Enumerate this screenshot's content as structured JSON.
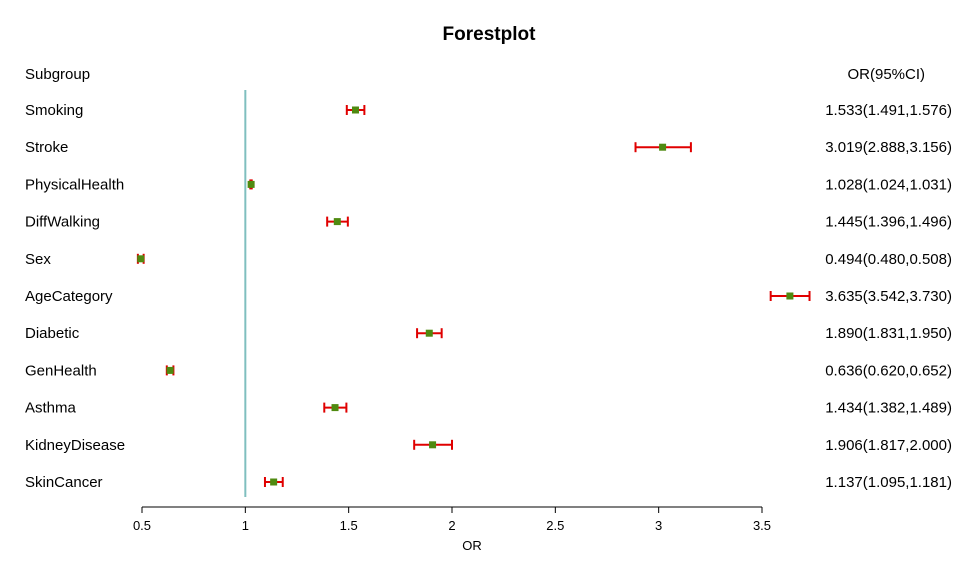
{
  "chart_data": {
    "type": "forest",
    "title": "Forestplot",
    "left_header": "Subgroup",
    "right_header": "OR(95%CI)",
    "xlabel": "OR",
    "xlim": [
      0.5,
      3.5
    ],
    "xticks": [
      0.5,
      1,
      1.5,
      2,
      2.5,
      3,
      3.5
    ],
    "xtick_labels": [
      "0.5",
      "1",
      "1.5",
      "2",
      "2.5",
      "3",
      "3.5"
    ],
    "reference_line": 1,
    "colors": {
      "reference_line": "#7fbfbf",
      "ci_line": "#e00000",
      "point": "#4f8a10",
      "axis": "#000000"
    },
    "rows": [
      {
        "subgroup": "Smoking",
        "or": 1.533,
        "lower": 1.491,
        "upper": 1.576,
        "label": "1.533(1.491,1.576)"
      },
      {
        "subgroup": "Stroke",
        "or": 3.019,
        "lower": 2.888,
        "upper": 3.156,
        "label": "3.019(2.888,3.156)"
      },
      {
        "subgroup": "PhysicalHealth",
        "or": 1.028,
        "lower": 1.024,
        "upper": 1.031,
        "label": "1.028(1.024,1.031)"
      },
      {
        "subgroup": "DiffWalking",
        "or": 1.445,
        "lower": 1.396,
        "upper": 1.496,
        "label": "1.445(1.396,1.496)"
      },
      {
        "subgroup": "Sex",
        "or": 0.494,
        "lower": 0.48,
        "upper": 0.508,
        "label": "0.494(0.480,0.508)"
      },
      {
        "subgroup": "AgeCategory",
        "or": 3.635,
        "lower": 3.542,
        "upper": 3.73,
        "label": "3.635(3.542,3.730)"
      },
      {
        "subgroup": "Diabetic",
        "or": 1.89,
        "lower": 1.831,
        "upper": 1.95,
        "label": "1.890(1.831,1.950)"
      },
      {
        "subgroup": "GenHealth",
        "or": 0.636,
        "lower": 0.62,
        "upper": 0.652,
        "label": "0.636(0.620,0.652)"
      },
      {
        "subgroup": "Asthma",
        "or": 1.434,
        "lower": 1.382,
        "upper": 1.489,
        "label": "1.434(1.382,1.489)"
      },
      {
        "subgroup": "KidneyDisease",
        "or": 1.906,
        "lower": 1.817,
        "upper": 2.0,
        "label": "1.906(1.817,2.000)"
      },
      {
        "subgroup": "SkinCancer",
        "or": 1.137,
        "lower": 1.095,
        "upper": 1.181,
        "label": "1.137(1.095,1.181)"
      }
    ]
  }
}
